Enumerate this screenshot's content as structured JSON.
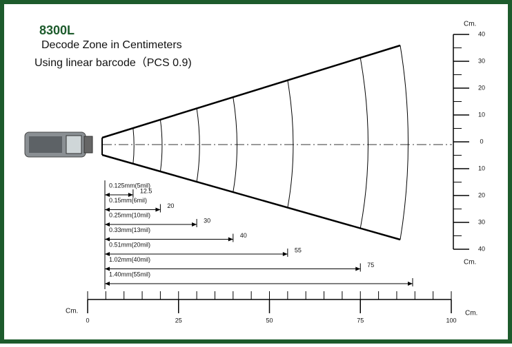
{
  "title": "8300L",
  "subtitle": "Decode Zone in Centimeters",
  "note": "Using linear barcode（PCS 0.9)",
  "ranges": [
    {
      "label": "0.125mm(5mil)",
      "distance": 12.5
    },
    {
      "label": "0.15mm(6mil)",
      "distance": 20
    },
    {
      "label": "0.25mm(10mil)",
      "distance": 30
    },
    {
      "label": "0.33mm(13mil)",
      "distance": 40
    },
    {
      "label": "0.51mm(20mil)",
      "distance": 55
    },
    {
      "label": "1.02mm(40mil)",
      "distance": 75
    },
    {
      "label": "1.40mm(55mil)"
    }
  ],
  "x_axis": {
    "unit_left": "Cm.",
    "unit_right": "Cm.",
    "ticks": [
      0,
      25,
      50,
      75,
      100
    ]
  },
  "y_axis": {
    "unit_top": "Cm.",
    "unit_bottom": "Cm.",
    "ticks": [
      "40",
      "30",
      "20",
      "10",
      "0",
      "10",
      "20",
      "30",
      "40"
    ]
  }
}
